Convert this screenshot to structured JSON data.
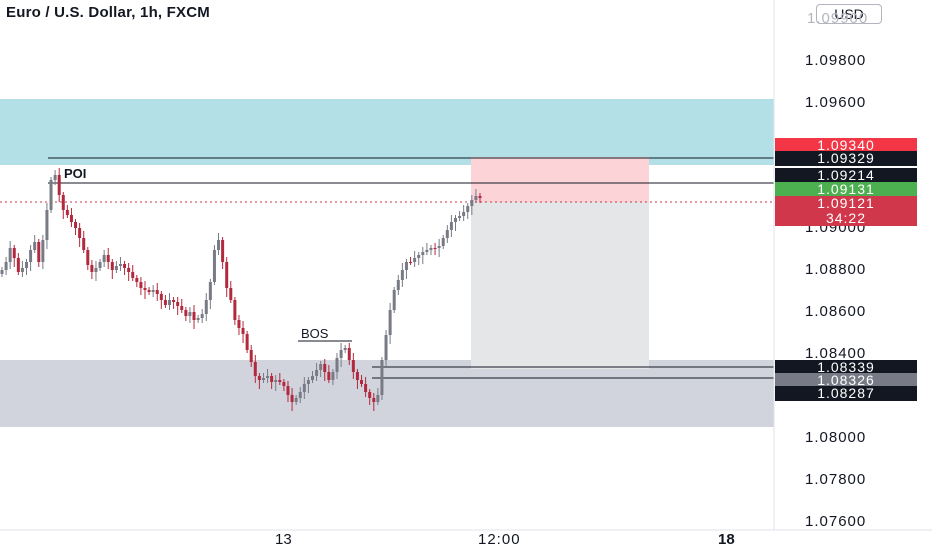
{
  "header": {
    "title": "Euro / U.S. Dollar, 1h, FXCM",
    "currency": "USD"
  },
  "annotations": {
    "poi": "POI",
    "bos": "BOS"
  },
  "price_axis": {
    "ticks": [
      "1.09800",
      "1.09600",
      "1.09000",
      "1.08800",
      "1.08600",
      "1.08400",
      "1.08000",
      "1.07800",
      "1.07600"
    ],
    "top_partial": "1.09900"
  },
  "price_tags": [
    {
      "value": "1.09340",
      "color": "#f23645"
    },
    {
      "value": "1.09329",
      "color": "#131722"
    },
    {
      "value": "1.09214",
      "color": "#131722"
    },
    {
      "value": "1.09131",
      "color": "#4caf50"
    },
    {
      "value": "1.09121",
      "color": "#d0374a"
    },
    {
      "value": "34:22",
      "color": "#d0374a"
    },
    {
      "value": "1.08339",
      "color": "#131722"
    },
    {
      "value": "1.08326",
      "color": "#787b86"
    },
    {
      "value": "1.08287",
      "color": "#131722"
    }
  ],
  "time_axis": {
    "labels": [
      "13",
      "12:00",
      "18"
    ]
  },
  "colors": {
    "bull": "#787b86",
    "bear": "#b2293d",
    "supply_zone": "#b2e0e6",
    "demand_zone": "#d1d4dc",
    "stop_zone": "#fcd4d8",
    "target_zone": "#e5e6e8"
  }
}
